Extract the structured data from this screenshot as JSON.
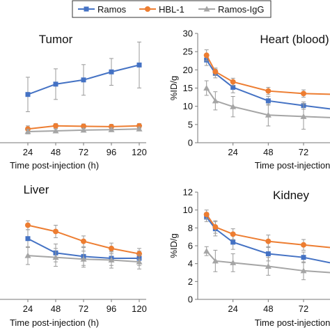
{
  "legend": {
    "items": [
      {
        "label": "Ramos",
        "color": "#4472C4",
        "marker": "square"
      },
      {
        "label": "HBL-1",
        "color": "#ED7D31",
        "marker": "circle"
      },
      {
        "label": "Ramos-IgG",
        "color": "#A5A5A5",
        "marker": "triangle"
      }
    ]
  },
  "chart_data": [
    {
      "type": "line",
      "title": "Tumor",
      "xlabel": "Time post-injection (h)",
      "ylabel": "",
      "x": [
        24,
        48,
        72,
        96,
        120
      ],
      "x_ticks": [
        "24",
        "48",
        "72",
        "96",
        "120"
      ],
      "y_ticks": [],
      "xlim": [
        0,
        126
      ],
      "ylim": [
        0,
        30
      ],
      "series": [
        {
          "name": "Ramos",
          "color": "#4472C4",
          "marker": "square",
          "x": [
            24,
            48,
            72,
            96,
            120
          ],
          "y": [
            12.6,
            15.3,
            16.4,
            18.5,
            20.3
          ],
          "err": [
            4.5,
            4.0,
            4.0,
            3.5,
            6.0
          ]
        },
        {
          "name": "HBL-1",
          "color": "#ED7D31",
          "marker": "circle",
          "x": [
            24,
            48,
            72,
            96,
            120
          ],
          "y": [
            3.6,
            4.4,
            4.3,
            4.2,
            4.4
          ],
          "err": [
            0.8,
            0.6,
            0.6,
            0.6,
            0.6
          ]
        },
        {
          "name": "Ramos-IgG",
          "color": "#A5A5A5",
          "marker": "triangle",
          "x": [
            24,
            48,
            72,
            96,
            120
          ],
          "y": [
            2.9,
            3.1,
            3.3,
            3.4,
            3.6
          ],
          "err": [
            0.6,
            0.5,
            0.5,
            0.5,
            0.5
          ]
        }
      ]
    },
    {
      "type": "line",
      "title": "Heart (blood)",
      "xlabel": "Time post-injection",
      "ylabel": "%ID/g",
      "x_ticks": [
        "24",
        "48",
        "72"
      ],
      "x_tick_values": [
        24,
        48,
        72
      ],
      "y_ticks": [
        "0",
        "5",
        "10",
        "15",
        "20",
        "25",
        "30"
      ],
      "y_tick_values": [
        0,
        5,
        10,
        15,
        20,
        25,
        30
      ],
      "xlim": [
        0,
        90
      ],
      "ylim": [
        0,
        30
      ],
      "series": [
        {
          "name": "Ramos",
          "color": "#4472C4",
          "marker": "square",
          "x": [
            6,
            12,
            24,
            48,
            72,
            90
          ],
          "y": [
            22.7,
            19.0,
            15.2,
            11.5,
            10.2,
            9.3
          ],
          "err": [
            1.5,
            1.2,
            1.5,
            1.2,
            1.0,
            0
          ]
        },
        {
          "name": "HBL-1",
          "color": "#ED7D31",
          "marker": "circle",
          "x": [
            6,
            12,
            24,
            48,
            72,
            90
          ],
          "y": [
            24.0,
            19.5,
            16.7,
            14.2,
            13.5,
            13.3
          ],
          "err": [
            1.5,
            1.0,
            1.0,
            1.0,
            1.0,
            0
          ]
        },
        {
          "name": "Ramos-IgG",
          "color": "#A5A5A5",
          "marker": "triangle",
          "x": [
            6,
            12,
            24,
            48,
            72,
            90
          ],
          "y": [
            15.0,
            11.5,
            9.9,
            7.6,
            7.2,
            6.9
          ],
          "err": [
            2.0,
            2.5,
            2.8,
            3.0,
            3.5,
            0
          ]
        }
      ]
    },
    {
      "type": "line",
      "title": "Liver",
      "xlabel": "Time post-injection (h)",
      "ylabel": "",
      "x": [
        0,
        24,
        48,
        72,
        96,
        120
      ],
      "x_ticks": [
        "24",
        "48",
        "72",
        "96",
        "120"
      ],
      "y_ticks": [],
      "xlim": [
        0,
        126
      ],
      "ylim": [
        0,
        12
      ],
      "series": [
        {
          "name": "Ramos",
          "color": "#4472C4",
          "marker": "square",
          "x": [
            24,
            48,
            72,
            96,
            120
          ],
          "y": [
            6.8,
            5.2,
            4.8,
            4.6,
            4.6
          ],
          "err": [
            1.0,
            1.0,
            1.0,
            0.8,
            0.8
          ]
        },
        {
          "name": "HBL-1",
          "color": "#ED7D31",
          "marker": "circle",
          "x": [
            24,
            48,
            72,
            96,
            120
          ],
          "y": [
            8.3,
            7.6,
            6.5,
            5.7,
            5.1
          ],
          "err": [
            0.5,
            0.7,
            0.6,
            0.6,
            0.6
          ]
        },
        {
          "name": "Ramos-IgG",
          "color": "#A5A5A5",
          "marker": "triangle",
          "x": [
            24,
            48,
            72,
            96,
            120
          ],
          "y": [
            4.9,
            4.7,
            4.5,
            4.4,
            4.2
          ],
          "err": [
            1.0,
            1.0,
            0.9,
            0.9,
            0.8
          ]
        }
      ]
    },
    {
      "type": "line",
      "title": "Kidney",
      "xlabel": "Time post-injection",
      "ylabel": "%ID/g",
      "x_ticks": [
        "24",
        "48",
        "72"
      ],
      "x_tick_values": [
        24,
        48,
        72
      ],
      "y_ticks": [
        "0",
        "2",
        "4",
        "6",
        "8",
        "10",
        "12"
      ],
      "y_tick_values": [
        0,
        2,
        4,
        6,
        8,
        10,
        12
      ],
      "xlim": [
        0,
        90
      ],
      "ylim": [
        0,
        12
      ],
      "series": [
        {
          "name": "Ramos",
          "color": "#4472C4",
          "marker": "square",
          "x": [
            6,
            12,
            24,
            48,
            72,
            90
          ],
          "y": [
            9.2,
            7.9,
            6.4,
            5.1,
            4.7,
            4.1
          ],
          "err": [
            0.5,
            0.8,
            0.8,
            0.8,
            0.6,
            0
          ]
        },
        {
          "name": "HBL-1",
          "color": "#ED7D31",
          "marker": "circle",
          "x": [
            6,
            12,
            24,
            48,
            72,
            90
          ],
          "y": [
            9.5,
            8.1,
            7.3,
            6.5,
            6.1,
            5.8
          ],
          "err": [
            0.5,
            0.7,
            0.6,
            0.7,
            0.6,
            0
          ]
        },
        {
          "name": "Ramos-IgG",
          "color": "#A5A5A5",
          "marker": "triangle",
          "x": [
            6,
            12,
            24,
            48,
            72,
            90
          ],
          "y": [
            5.4,
            4.3,
            4.1,
            3.7,
            3.2,
            3.0
          ],
          "err": [
            0.5,
            1.2,
            1.0,
            1.0,
            1.0,
            0
          ]
        }
      ]
    }
  ]
}
